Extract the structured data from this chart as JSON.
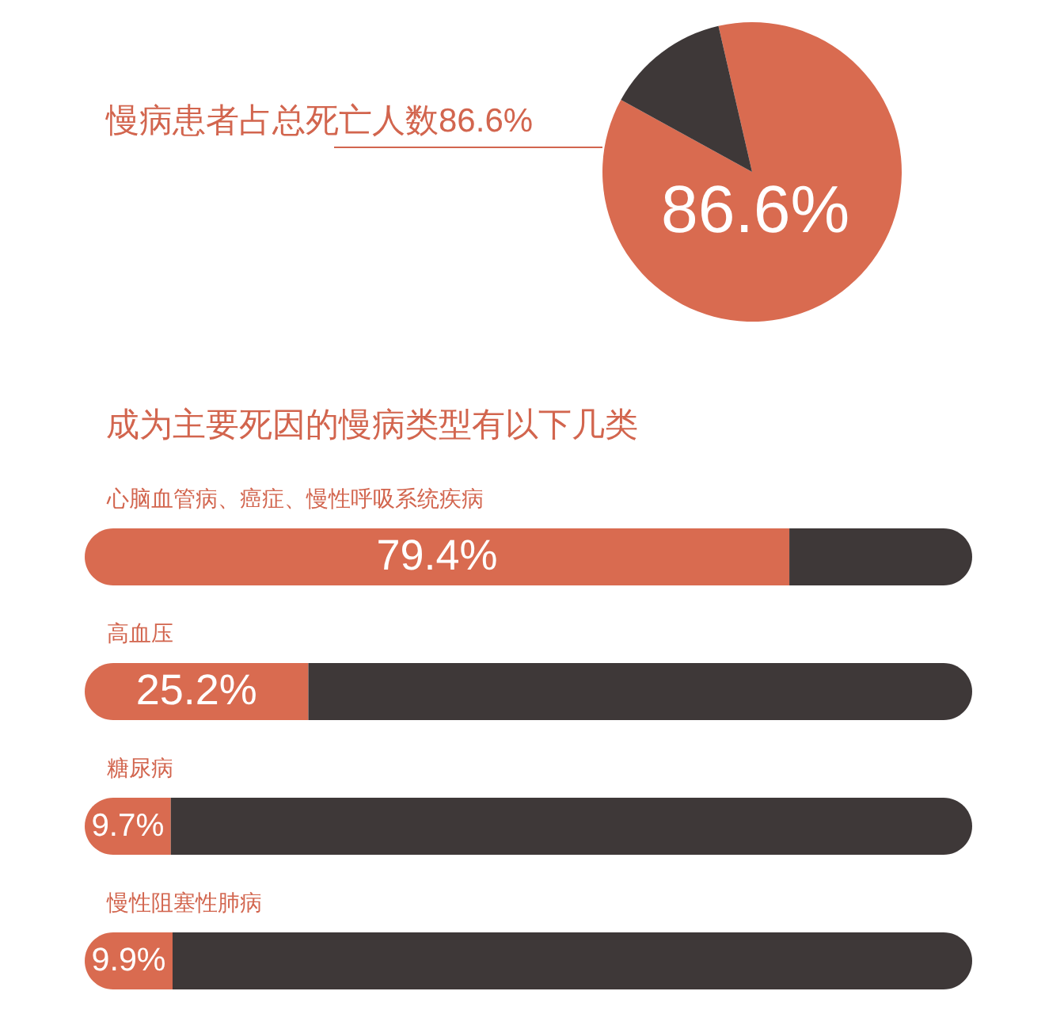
{
  "chart_data": [
    {
      "type": "pie",
      "categories": [
        null,
        null
      ],
      "values": [
        86.6,
        13.4
      ],
      "colors": [
        "#d96b50",
        "#3e3838"
      ],
      "value_labels": [
        "86.6%",
        null
      ],
      "annotations": [
        "慢病患者占总死亡人数86.6%"
      ]
    },
    {
      "type": "bar",
      "orientation": "horizontal",
      "stacked": true,
      "title": "成为主要死因的慢病类型有以下几类",
      "categories": [
        "心脑血管病、癌症、慢性呼吸系统疾病",
        "高血压",
        "糖尿病",
        "慢性阻塞性肺病"
      ],
      "series": [
        {
          "color": "#d96b50",
          "values": [
            79.4,
            25.2,
            9.7,
            9.9
          ],
          "value_labels": [
            "79.4%",
            "25.2%",
            "9.7%",
            "9.9%"
          ]
        },
        {
          "color": "#3e3838",
          "values": [
            20.6,
            74.8,
            90.3,
            90.1
          ]
        }
      ],
      "xlim": [
        0,
        100
      ],
      "tick_labels": "y"
    }
  ]
}
